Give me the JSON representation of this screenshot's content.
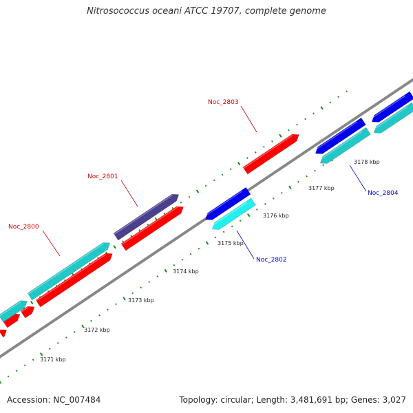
{
  "title": "Nitrosococcus oceani ATCC 19707, complete genome",
  "footer": {
    "accession": "Accession: NC_007484",
    "summary": "Topology: circular; Length: 3,481,691 bp; Genes: 3,027"
  },
  "colors": {
    "forward_gene": "#ff0000",
    "forward_gene_alt": "#4b3f8f",
    "reverse_gene": "#0000ee",
    "cds_cyan": "#22c8c8",
    "cds_cyan_light": "#22f0f0",
    "backbone": "#888888",
    "ticks": "#1a8a1a",
    "label_forward": "#cc0000",
    "label_reverse": "#0000cc"
  },
  "scale": {
    "unit": "kbp",
    "labels": [
      "3171 kbp",
      "3172 kbp",
      "3173 kbp",
      "3174 kbp",
      "3175 kbp",
      "3176 kbp",
      "3177 kbp",
      "3178 kbp"
    ]
  },
  "gene_labels": [
    {
      "name": "Noc_2800",
      "strand": "forward"
    },
    {
      "name": "Noc_2801",
      "strand": "forward"
    },
    {
      "name": "Noc_2802",
      "strand": "reverse"
    },
    {
      "name": "Noc_2803",
      "strand": "forward"
    },
    {
      "name": "Noc_2804",
      "strand": "reverse"
    }
  ]
}
